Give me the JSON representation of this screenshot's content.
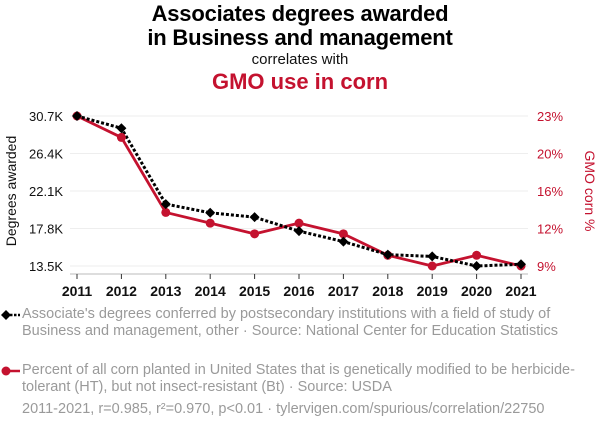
{
  "header": {
    "title_line1": "Associates degrees awarded",
    "title_line2": "in Business and management",
    "correlates": "correlates with",
    "title2": "GMO use in corn"
  },
  "colors": {
    "series1": "#000000",
    "series2": "#c4122f",
    "grid": "#eeeeee",
    "muted": "#9a9a9a"
  },
  "legend": {
    "series1": "Associate's degrees conferred by postsecondary institutions with a field of study of Business and management, other · Source: National Center for Education Statistics",
    "series2": "Percent of all corn planted in United States that is genetically modified to be herbicide-tolerant (HT), but not insect-resistant (Bt) · Source: USDA"
  },
  "footer": "2011-2021, r=0.985, r²=0.970, p<0.01 · tylervigen.com/spurious/correlation/22750",
  "chart_data": {
    "type": "line",
    "title": "Associates degrees awarded in Business and management correlates with GMO use in corn",
    "x": [
      2011,
      2012,
      2013,
      2014,
      2015,
      2016,
      2017,
      2018,
      2019,
      2020,
      2021
    ],
    "xtick_labels": [
      "2011",
      "2012",
      "2013",
      "2014",
      "2015",
      "2016",
      "2017",
      "2018",
      "2019",
      "2020",
      "2021"
    ],
    "ylabel": "Degrees awarded",
    "y2label": "GMO corn %",
    "ylim": [
      13500,
      30700
    ],
    "y2lim": [
      9,
      23
    ],
    "ytick_values": [
      30700,
      26400,
      22100,
      17800,
      13500
    ],
    "ytick_labels": [
      "30.7K",
      "26.4K",
      "22.1K",
      "17.8K",
      "13.5K"
    ],
    "y2tick_values": [
      23,
      19.5,
      16,
      12.5,
      9
    ],
    "y2tick_labels": [
      "23%",
      "20%",
      "16%",
      "12%",
      "9%"
    ],
    "grid": true,
    "legend_position": "bottom",
    "series": [
      {
        "name": "Associate's degrees conferred (Business and management, other)",
        "axis": "left",
        "style": "dotted",
        "marker": "diamond",
        "values": [
          30700,
          29300,
          20600,
          19600,
          19100,
          17500,
          16300,
          14800,
          14600,
          13500,
          13700
        ]
      },
      {
        "name": "Percent of corn planted GM herbicide-tolerant only",
        "axis": "right",
        "style": "solid",
        "marker": "circle",
        "values": [
          23,
          21,
          14,
          13,
          12,
          13,
          12,
          10,
          9,
          10,
          9
        ]
      }
    ]
  }
}
